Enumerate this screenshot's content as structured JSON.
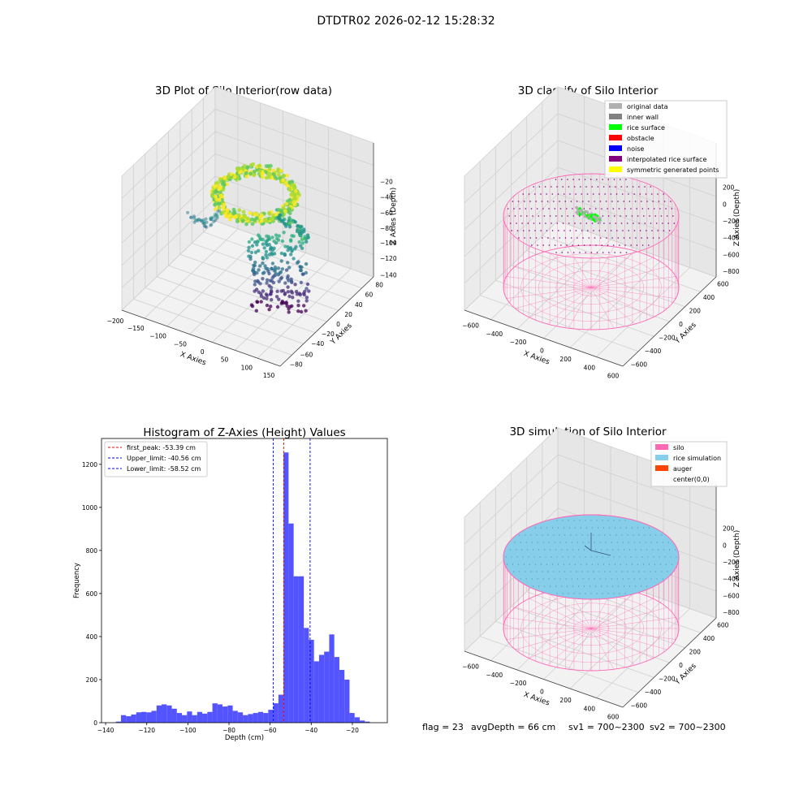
{
  "figure": {
    "suptitle": "DTDTR02 2026-02-12 15:28:32"
  },
  "footer": {
    "flag": "flag = 23",
    "avg_depth": "avgDepth = 66 cm",
    "sv1": "sv1 = 700~2300",
    "sv2": "sv2 = 700~2300"
  },
  "colors": {
    "original_data": "#b0b0b0",
    "inner_wall": "#808080",
    "rice_surface": "#00ff00",
    "obstacle": "#ff0000",
    "noise": "#0000ff",
    "interpolated_rice_surface": "#800080",
    "symmetric_generated_points": "#ffff00",
    "silo": "#ff69b4",
    "rice_simulation": "#87ceeb",
    "auger": "#ff4500",
    "histogram_bar": "#4b4bff",
    "first_peak_line": "#ff0000",
    "limit_line": "#0000ff"
  },
  "chart_data": [
    {
      "type": "scatter",
      "title": "3D Plot of Silo Interior(row data)",
      "xlabel": "X Axies",
      "ylabel": "Y Axies",
      "zlabel": "Z Axies (Depth)",
      "xticks": [
        "−200",
        "−150",
        "−100",
        "−50",
        "0",
        "50",
        "100",
        "150"
      ],
      "yticks": [
        "−80",
        "−60",
        "−40",
        "−20",
        "0",
        "20",
        "40",
        "60",
        "80"
      ],
      "zticks": [
        "−140",
        "−120",
        "−100",
        "−80",
        "−60",
        "−40",
        "−20"
      ],
      "xlim": [
        -200,
        150
      ],
      "ylim": [
        -80,
        80
      ],
      "zlim": [
        -140,
        -20
      ],
      "colormap": "viridis",
      "points": {
        "upper_ring": {
          "x_range": [
            -120,
            100
          ],
          "y_range": [
            -40,
            80
          ],
          "z": [
            -60,
            -25
          ]
        },
        "column": {
          "x_range": [
            -20,
            60
          ],
          "y_range": [
            -40,
            0
          ],
          "z": [
            -140,
            -60
          ]
        }
      }
    },
    {
      "type": "scatter",
      "title": "3D classify of Silo Interior",
      "xlabel": "X Axies",
      "ylabel": "Y Axies",
      "zlabel": "Z Axies (Depth)",
      "xticks": [
        "−600",
        "−400",
        "−200",
        "0",
        "200",
        "400",
        "600"
      ],
      "yticks": [
        "−600",
        "−400",
        "−200",
        "0",
        "200",
        "400",
        "600"
      ],
      "zticks": [
        "−800",
        "−600",
        "−400",
        "−200",
        "0",
        "200"
      ],
      "legend": [
        "original data",
        "inner wall",
        "rice surface",
        "obstacle",
        "noise",
        "interpolated rice surface",
        "symmetric generated points"
      ],
      "legend_loc": "top-right"
    },
    {
      "type": "bar",
      "title": "Histogram of Z-Axies (Height) Values",
      "xlabel": "Depth (cm)",
      "ylabel": "Frequency",
      "xlim": [
        -142,
        -3
      ],
      "ylim": [
        0,
        1320
      ],
      "xticks": [
        -140,
        -120,
        -100,
        -80,
        -60,
        -40,
        -20
      ],
      "xtick_labels": [
        "−140",
        "−120",
        "−100",
        "−80",
        "−60",
        "−40",
        "−20"
      ],
      "yticks": [
        0,
        200,
        400,
        600,
        800,
        1000,
        1200
      ],
      "bin_start": -135,
      "bin_width": 2.47,
      "values": [
        5,
        35,
        30,
        38,
        48,
        50,
        48,
        55,
        80,
        85,
        80,
        65,
        45,
        35,
        52,
        35,
        50,
        42,
        50,
        90,
        85,
        75,
        80,
        55,
        48,
        35,
        40,
        45,
        50,
        45,
        60,
        90,
        130,
        1255,
        925,
        680,
        680,
        440,
        385,
        285,
        315,
        330,
        410,
        305,
        245,
        200,
        45,
        25,
        10,
        5
      ],
      "lines": [
        {
          "label": "first_peak: -53.39 cm",
          "x": -53.39,
          "style": "first_peak"
        },
        {
          "label": "Upper_limit: -40.56 cm",
          "x": -40.56,
          "style": "limit"
        },
        {
          "label": "Lower_limit: -58.52 cm",
          "x": -58.52,
          "style": "limit"
        }
      ],
      "legend_loc": "top-left"
    },
    {
      "type": "scatter",
      "title": "3D simulation of Silo Interior",
      "xlabel": "X Axies",
      "ylabel": "Y Axies",
      "zlabel": "Z Axies (Depth)",
      "xticks": [
        "−600",
        "−400",
        "−200",
        "0",
        "200",
        "400",
        "600"
      ],
      "yticks": [
        "−600",
        "−400",
        "−200",
        "0",
        "200",
        "400",
        "600"
      ],
      "zticks": [
        "−800",
        "−600",
        "−400",
        "−200",
        "0",
        "200"
      ],
      "legend": [
        "silo",
        "rice simulation",
        "auger",
        "center(0,0)"
      ],
      "legend_loc": "top-right"
    }
  ]
}
